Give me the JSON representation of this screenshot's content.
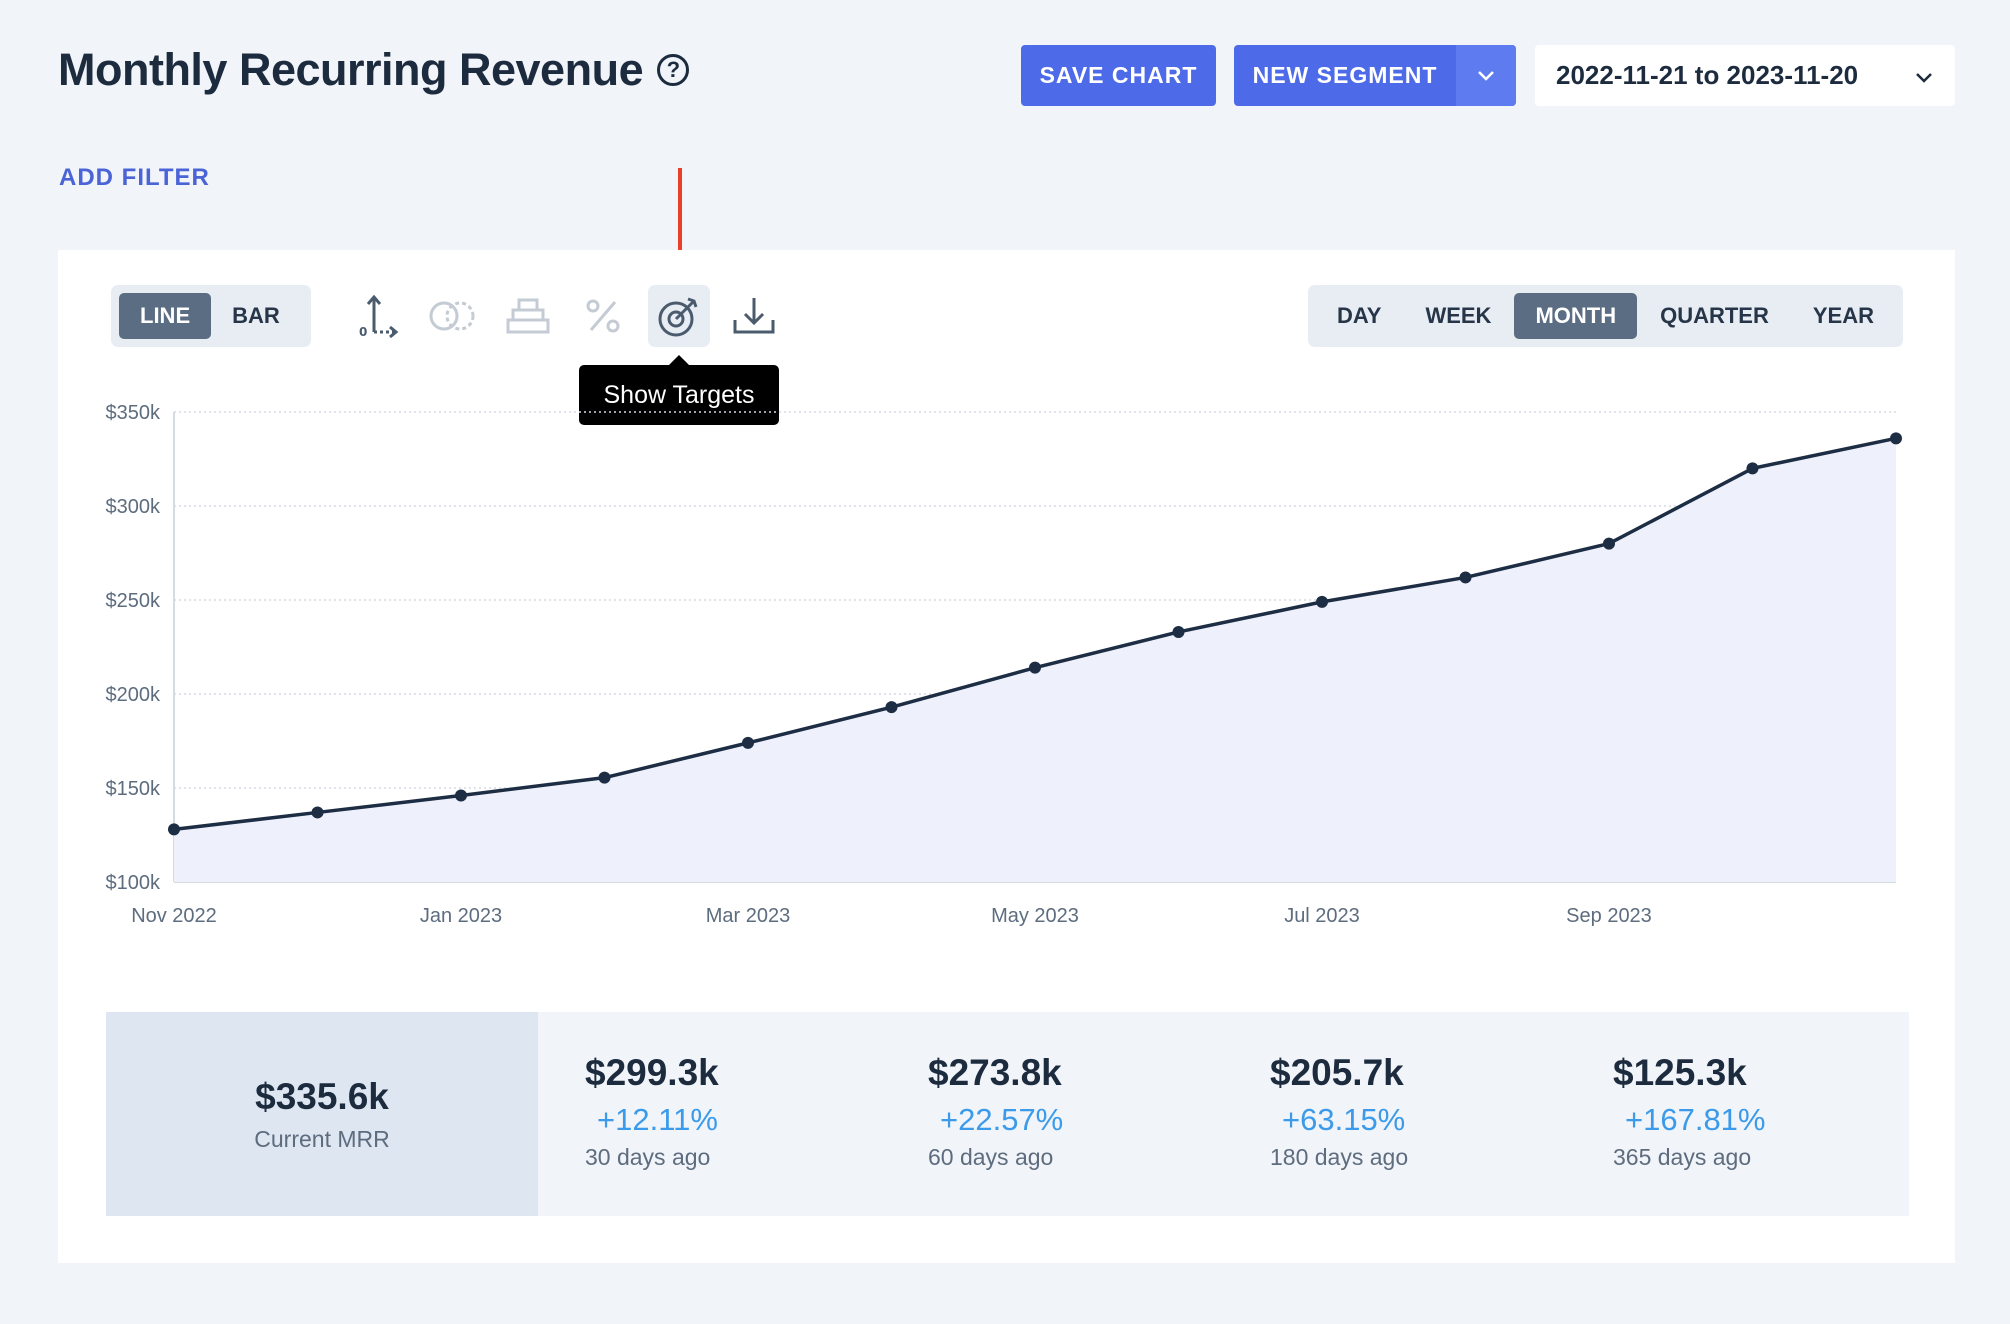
{
  "header": {
    "title": "Monthly Recurring Revenue",
    "help_icon": "question-circle-icon",
    "save_chart_label": "SAVE CHART",
    "new_segment_label": "NEW SEGMENT",
    "date_range": "2022-11-21 to 2023-11-20"
  },
  "filters": {
    "add_filter_label": "ADD FILTER"
  },
  "toolbar": {
    "chart_types": [
      {
        "label": "LINE",
        "active": true
      },
      {
        "label": "BAR",
        "active": false
      }
    ],
    "icons": [
      "axis-scale-icon",
      "compare-circles-icon",
      "stack-icon",
      "percent-icon",
      "target-icon",
      "download-icon"
    ],
    "tooltip": "Show Targets",
    "periods": [
      {
        "label": "DAY",
        "active": false
      },
      {
        "label": "WEEK",
        "active": false
      },
      {
        "label": "MONTH",
        "active": true
      },
      {
        "label": "QUARTER",
        "active": false
      },
      {
        "label": "YEAR",
        "active": false
      }
    ]
  },
  "chart_data": {
    "type": "area",
    "title": "",
    "xlabel": "",
    "ylabel": "",
    "x": [
      "2022-11",
      "2022-12",
      "2023-01",
      "2023-02",
      "2023-03",
      "2023-04",
      "2023-05",
      "2023-06",
      "2023-07",
      "2023-08",
      "2023-09",
      "2023-10",
      "2023-11"
    ],
    "x_tick_labels": [
      "Nov 2022",
      "Jan 2023",
      "Mar 2023",
      "May 2023",
      "Jul 2023",
      "Sep 2023"
    ],
    "y_tick_labels": [
      "$100k",
      "$150k",
      "$200k",
      "$250k",
      "$300k",
      "$350k"
    ],
    "ylim": [
      100000,
      350000
    ],
    "values": [
      128000,
      137000,
      146000,
      155500,
      174000,
      193000,
      214000,
      233000,
      249000,
      262000,
      280000,
      320000,
      336000
    ],
    "grid": true,
    "line_color": "#1d2d44",
    "fill_color": "#eef1fb"
  },
  "stats": {
    "current": {
      "value": "$335.6k",
      "label": "Current MRR"
    },
    "history": [
      {
        "value": "$299.3k",
        "change": "+12.11%",
        "label": "30 days ago"
      },
      {
        "value": "$273.8k",
        "change": "+22.57%",
        "label": "60 days ago"
      },
      {
        "value": "$205.7k",
        "change": "+63.15%",
        "label": "180 days ago"
      },
      {
        "value": "$125.3k",
        "change": "+167.81%",
        "label": "365 days ago"
      }
    ]
  },
  "colors": {
    "accent": "#4d6be8",
    "positive": "#3b9bea",
    "annotation": "#e8402a"
  }
}
